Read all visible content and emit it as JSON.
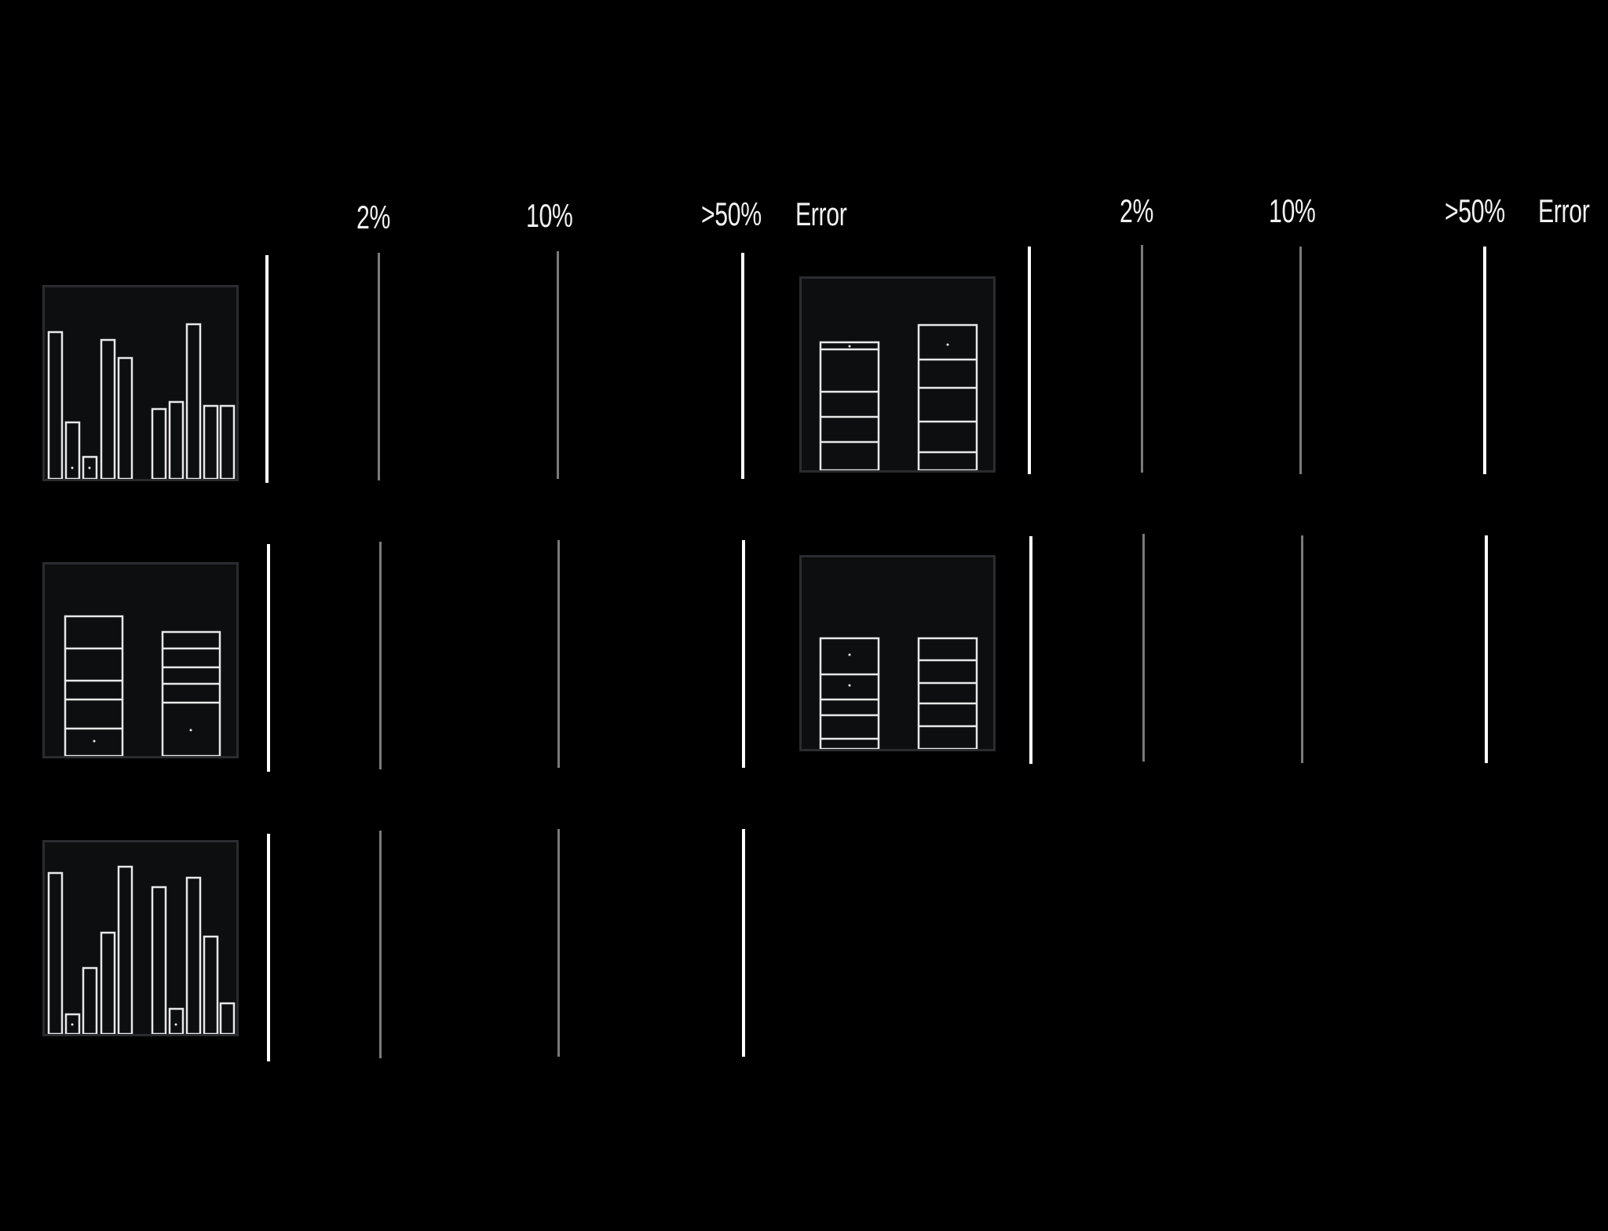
{
  "colors": {
    "background": "#000000",
    "panel_fill": "#0d0e10",
    "panel_border": "#2b2c2f",
    "mark_stroke": "#e8e8e8",
    "line_primary": "#ffffff",
    "line_secondary": "#7a7a7a"
  },
  "left_group": {
    "headers": {
      "h2": "2%",
      "h10": "10%",
      "h50": ">50%",
      "error": "Error"
    }
  },
  "right_group": {
    "headers": {
      "h2": "2%",
      "h10": "10%",
      "h50": ">50%",
      "error": "Error"
    }
  }
}
